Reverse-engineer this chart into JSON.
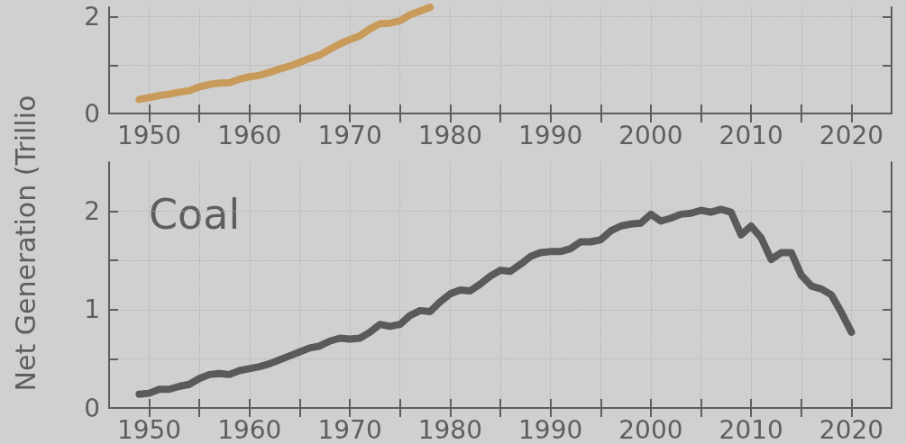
{
  "chart_data": [
    {
      "type": "line",
      "x": [
        1949,
        1950,
        1951,
        1952,
        1953,
        1954,
        1955,
        1956,
        1957,
        1958,
        1959,
        1960,
        1961,
        1962,
        1963,
        1964,
        1965,
        1966,
        1967,
        1968,
        1969,
        1970,
        1971,
        1972,
        1973,
        1974,
        1975,
        1976,
        1977,
        1978
      ],
      "series": [
        {
          "color": "#c89b5a",
          "values": [
            0.29,
            0.33,
            0.37,
            0.4,
            0.44,
            0.47,
            0.55,
            0.6,
            0.63,
            0.64,
            0.71,
            0.76,
            0.79,
            0.85,
            0.92,
            0.98,
            1.06,
            1.14,
            1.21,
            1.33,
            1.44,
            1.53,
            1.61,
            1.75,
            1.86,
            1.87,
            1.92,
            2.04,
            2.12,
            2.2
          ]
        }
      ],
      "xlim": [
        1946,
        2024
      ],
      "xticks": [
        1950,
        {
          "value": 1955,
          "label": null
        },
        1960,
        {
          "value": 1965,
          "label": null
        },
        1970,
        {
          "value": 1975,
          "label": null
        },
        1980,
        {
          "value": 1985,
          "label": null
        },
        1990,
        {
          "value": 1995,
          "label": null
        },
        2000,
        {
          "value": 2005,
          "label": null
        },
        2010,
        {
          "value": 2015,
          "label": null
        },
        2020
      ],
      "ylim": [
        0,
        2.2
      ],
      "yticks": [
        0,
        {
          "value": 1,
          "label": null
        },
        2
      ],
      "grid": true,
      "line_style": "solid"
    },
    {
      "type": "line",
      "ylabel": "Net Generation (Trillio",
      "annotations": [
        "Coal"
      ],
      "x": [
        1949,
        1950,
        1951,
        1952,
        1953,
        1954,
        1955,
        1956,
        1957,
        1958,
        1959,
        1960,
        1961,
        1962,
        1963,
        1964,
        1965,
        1966,
        1967,
        1968,
        1969,
        1970,
        1971,
        1972,
        1973,
        1974,
        1975,
        1976,
        1977,
        1978,
        1979,
        1980,
        1981,
        1982,
        1983,
        1984,
        1985,
        1986,
        1987,
        1988,
        1989,
        1990,
        1991,
        1992,
        1993,
        1994,
        1995,
        1996,
        1997,
        1998,
        1999,
        2000,
        2001,
        2002,
        2003,
        2004,
        2005,
        2006,
        2007,
        2008,
        2009,
        2010,
        2011,
        2012,
        2013,
        2014,
        2015,
        2016,
        2017,
        2018,
        2019,
        2020
      ],
      "series": [
        {
          "color": "#5a5a5a",
          "values": [
            0.14,
            0.15,
            0.19,
            0.19,
            0.22,
            0.24,
            0.3,
            0.34,
            0.35,
            0.34,
            0.38,
            0.4,
            0.42,
            0.45,
            0.49,
            0.53,
            0.57,
            0.61,
            0.63,
            0.68,
            0.71,
            0.7,
            0.71,
            0.77,
            0.85,
            0.83,
            0.85,
            0.94,
            0.99,
            0.98,
            1.08,
            1.16,
            1.2,
            1.19,
            1.26,
            1.34,
            1.4,
            1.39,
            1.46,
            1.54,
            1.58,
            1.59,
            1.59,
            1.62,
            1.69,
            1.69,
            1.71,
            1.8,
            1.85,
            1.87,
            1.88,
            1.97,
            1.9,
            1.93,
            1.97,
            1.98,
            2.01,
            1.99,
            2.02,
            1.99,
            1.76,
            1.85,
            1.73,
            1.51,
            1.58,
            1.58,
            1.35,
            1.24,
            1.21,
            1.15,
            0.97,
            0.77
          ]
        }
      ],
      "xlim": [
        1946,
        2024
      ],
      "xticks": [
        1950,
        {
          "value": 1955,
          "label": null
        },
        1960,
        {
          "value": 1965,
          "label": null
        },
        1970,
        {
          "value": 1975,
          "label": null
        },
        1980,
        {
          "value": 1985,
          "label": null
        },
        1990,
        {
          "value": 1995,
          "label": null
        },
        2000,
        {
          "value": 2005,
          "label": null
        },
        2010,
        {
          "value": 2015,
          "label": null
        },
        2020
      ],
      "ylim": [
        0,
        2.5
      ],
      "yticks": [
        0,
        {
          "value": 0.5,
          "label": null
        },
        1,
        {
          "value": 1.5,
          "label": null
        },
        2
      ],
      "grid": true,
      "line_style": "solid"
    }
  ]
}
